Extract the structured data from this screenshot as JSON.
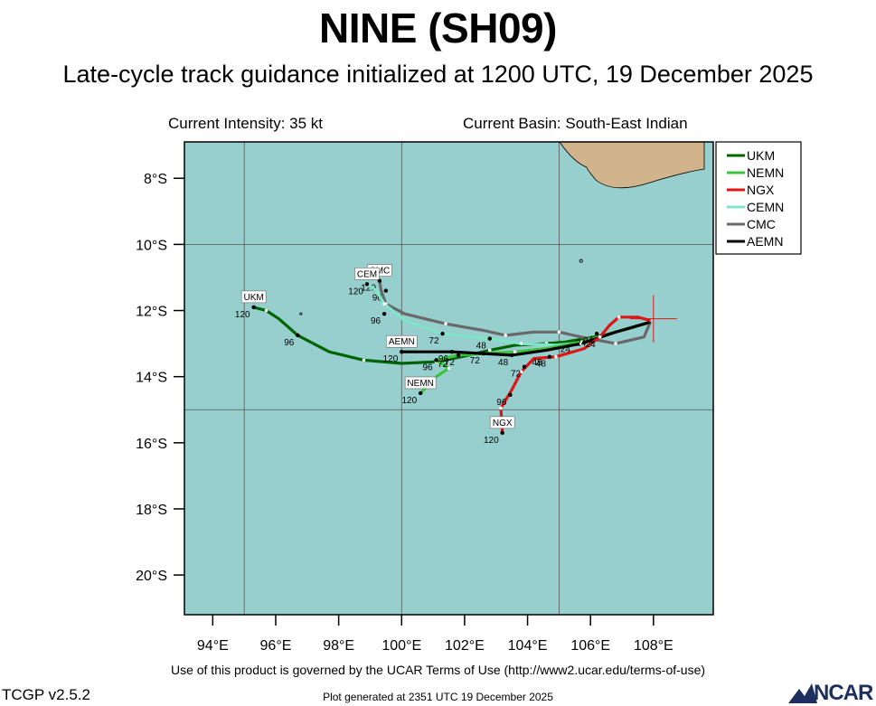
{
  "header": {
    "title": "NINE (SH09)",
    "subtitle": "Late-cycle track guidance initialized at 1200 UTC, 19 December 2025",
    "intensity": "Current Intensity: 35 kt",
    "basin": "Current Basin: South-East Indian"
  },
  "map": {
    "lon_range": [
      93.1,
      109.9
    ],
    "lat_range": [
      -21.2,
      -6.9
    ],
    "ocean_color": "#97cfcf",
    "land_color": "#d2b48c",
    "lat_ticks": [
      {
        "value": -8,
        "label": "8°S"
      },
      {
        "value": -10,
        "label": "10°S"
      },
      {
        "value": -12,
        "label": "12°S"
      },
      {
        "value": -14,
        "label": "14°S"
      },
      {
        "value": -16,
        "label": "16°S"
      },
      {
        "value": -18,
        "label": "18°S"
      },
      {
        "value": -20,
        "label": "20°S"
      }
    ],
    "lon_ticks": [
      {
        "value": 94,
        "label": "94°E"
      },
      {
        "value": 96,
        "label": "96°E"
      },
      {
        "value": 98,
        "label": "98°E"
      },
      {
        "value": 100,
        "label": "100°E"
      },
      {
        "value": 102,
        "label": "102°E"
      },
      {
        "value": 104,
        "label": "104°E"
      },
      {
        "value": 106,
        "label": "106°E"
      },
      {
        "value": 108,
        "label": "108°E"
      }
    ],
    "grid_lons": [
      95,
      100,
      105
    ],
    "grid_lats": [
      -10,
      -15
    ],
    "storm_position": {
      "lon": 108.0,
      "lat": -12.25
    }
  },
  "legend": [
    {
      "name": "UKM",
      "color": "#006400"
    },
    {
      "name": "NEMN",
      "color": "#3cc43c"
    },
    {
      "name": "NGX",
      "color": "#e01414"
    },
    {
      "name": "CEMN",
      "color": "#7fe5c8"
    },
    {
      "name": "CMC",
      "color": "#696969"
    },
    {
      "name": "AEMN",
      "color": "#000000"
    }
  ],
  "tracks": [
    {
      "model": "UKM",
      "color": "#006400",
      "end_label": "UKM",
      "points": [
        [
          107.9,
          -12.35
        ],
        [
          107.2,
          -12.55
        ],
        [
          106.4,
          -12.75
        ],
        [
          105.2,
          -12.95
        ],
        [
          104.6,
          -13.0
        ],
        [
          103.6,
          -13.05
        ],
        [
          102.8,
          -13.2
        ],
        [
          101.9,
          -13.4
        ],
        [
          101.1,
          -13.55
        ],
        [
          100.0,
          -13.6
        ],
        [
          98.8,
          -13.5
        ],
        [
          97.7,
          -13.25
        ],
        [
          96.7,
          -12.75
        ],
        [
          96.1,
          -12.25
        ],
        [
          95.7,
          -12.0
        ],
        [
          95.3,
          -11.9
        ]
      ],
      "labels": [
        [
          "96",
          96.7,
          -12.75
        ],
        [
          "120",
          95.3,
          -11.9
        ]
      ]
    },
    {
      "model": "CMC",
      "color": "#696969",
      "end_label": "CMC",
      "points": [
        [
          107.9,
          -12.35
        ],
        [
          107.7,
          -12.8
        ],
        [
          106.8,
          -13.0
        ],
        [
          105.7,
          -12.8
        ],
        [
          105.0,
          -12.65
        ],
        [
          104.2,
          -12.65
        ],
        [
          103.3,
          -12.75
        ],
        [
          102.6,
          -12.6
        ],
        [
          101.4,
          -12.4
        ],
        [
          100.1,
          -12.1
        ],
        [
          99.5,
          -11.8
        ],
        [
          99.35,
          -11.4
        ],
        [
          99.3,
          -11.1
        ]
      ],
      "labels": [
        [
          "96",
          99.5,
          -11.4
        ],
        [
          "120",
          99.3,
          -11.1
        ]
      ]
    },
    {
      "model": "CEMN",
      "color": "#7fe5c8",
      "end_label": "CEM",
      "points": [
        [
          107.9,
          -12.35
        ],
        [
          106.9,
          -12.6
        ],
        [
          105.9,
          -12.95
        ],
        [
          104.9,
          -13.05
        ],
        [
          103.8,
          -13.0
        ],
        [
          102.8,
          -12.85
        ],
        [
          101.3,
          -12.7
        ],
        [
          100.1,
          -12.3
        ],
        [
          99.45,
          -11.8
        ],
        [
          99.2,
          -11.4
        ],
        [
          98.9,
          -11.2
        ]
      ],
      "labels": [
        [
          "48",
          102.8,
          -12.85
        ],
        [
          "72",
          101.3,
          -12.7
        ],
        [
          "96",
          99.45,
          -12.1
        ],
        [
          "120",
          98.9,
          -11.2
        ]
      ]
    },
    {
      "model": "NEMN",
      "color": "#3cc43c",
      "end_label": "NEMN",
      "points": [
        [
          107.9,
          -12.35
        ],
        [
          106.8,
          -12.65
        ],
        [
          105.7,
          -12.95
        ],
        [
          104.6,
          -13.15
        ],
        [
          103.6,
          -13.25
        ],
        [
          102.6,
          -13.3
        ],
        [
          101.8,
          -13.35
        ],
        [
          101.1,
          -13.5
        ],
        [
          101.5,
          -13.75
        ],
        [
          101.1,
          -14.0
        ],
        [
          100.6,
          -14.5
        ]
      ],
      "labels": [
        [
          "72",
          101.8,
          -13.35
        ],
        [
          "96",
          101.1,
          -13.5
        ],
        [
          "120",
          100.6,
          -14.5
        ]
      ]
    },
    {
      "model": "AEMN",
      "color": "#000000",
      "end_label": "AEMN",
      "points": [
        [
          107.9,
          -12.35
        ],
        [
          106.8,
          -12.65
        ],
        [
          105.7,
          -13.0
        ],
        [
          104.6,
          -13.2
        ],
        [
          103.5,
          -13.35
        ],
        [
          102.6,
          -13.3
        ],
        [
          101.6,
          -13.25
        ],
        [
          100.6,
          -13.25
        ],
        [
          100.0,
          -13.25
        ]
      ],
      "labels": [
        [
          "48",
          103.5,
          -13.35
        ],
        [
          "72",
          102.6,
          -13.3
        ],
        [
          "96",
          101.6,
          -13.25
        ],
        [
          "120",
          100.0,
          -13.25
        ]
      ]
    },
    {
      "model": "NGX",
      "color": "#e01414",
      "end_label": "NGX",
      "points": [
        [
          107.9,
          -12.3
        ],
        [
          107.5,
          -12.2
        ],
        [
          106.9,
          -12.2
        ],
        [
          106.6,
          -12.45
        ],
        [
          106.3,
          -12.8
        ],
        [
          105.8,
          -13.15
        ],
        [
          104.9,
          -13.4
        ],
        [
          104.2,
          -13.45
        ],
        [
          103.8,
          -13.85
        ],
        [
          103.5,
          -14.4
        ],
        [
          103.15,
          -14.95
        ],
        [
          103.2,
          -15.7
        ]
      ],
      "labels": [
        [
          "24",
          106.2,
          -12.7
        ],
        [
          "48",
          104.7,
          -13.4
        ],
        [
          "72",
          103.9,
          -13.7
        ],
        [
          "96",
          103.45,
          -14.55
        ],
        [
          "120",
          103.2,
          -15.7
        ]
      ]
    }
  ],
  "extra_labels": [
    [
      "24",
      106.0,
      -13.0
    ],
    [
      "48",
      104.3,
      -13.55
    ],
    [
      "24",
      105.7,
      -12.95
    ],
    [
      "24",
      105.2,
      -13.15
    ],
    [
      "72",
      101.3,
      -13.6
    ]
  ],
  "footer": {
    "terms": "Use of this product is governed by the UCAR Terms of Use (http://www2.ucar.edu/terms-of-use)",
    "version": "TCGP v2.5.2",
    "generated": "Plot generated at 2351 UTC   19 December 2025",
    "logo": "NCAR"
  }
}
